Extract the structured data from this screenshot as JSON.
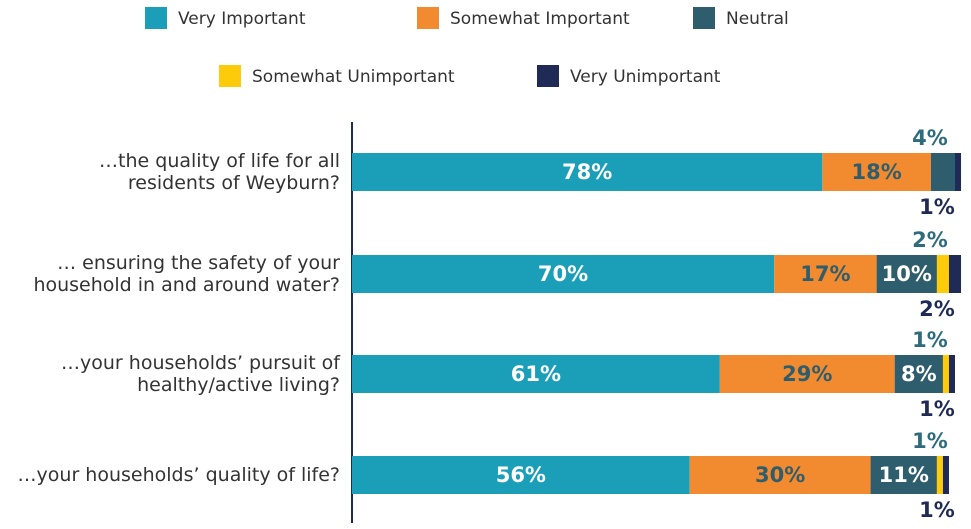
{
  "chart_data": {
    "type": "stacked-bar-horizontal",
    "categories": [
      "…the quality of life for all residents of Weyburn?",
      "… ensuring the safety of your household in and around water?",
      "…your households’ pursuit of healthy/active living?",
      "…your households’ quality of life?"
    ],
    "series": [
      {
        "name": "Very Important",
        "color": "#1b9fb8",
        "values": [
          78,
          70,
          61,
          56
        ],
        "value_labels": [
          "78%",
          "70%",
          "61%",
          "56%"
        ]
      },
      {
        "name": "Somewhat Important",
        "color": "#f28b30",
        "values": [
          18,
          17,
          29,
          30
        ],
        "value_labels": [
          "18%",
          "17%",
          "29%",
          "30%"
        ]
      },
      {
        "name": "Neutral",
        "color": "#2e5d6e",
        "values": [
          4,
          10,
          8,
          11
        ],
        "value_labels": [
          "4%",
          "10%",
          "8%",
          "11%"
        ]
      },
      {
        "name": "Somewhat Unimportant",
        "color": "#fecb0a",
        "values": [
          0,
          2,
          1,
          1
        ],
        "value_labels": [
          null,
          "2%",
          "1%",
          "1%"
        ]
      },
      {
        "name": "Very Unimportant",
        "color": "#1f2a56",
        "values": [
          1,
          2,
          1,
          1
        ],
        "value_labels": [
          "1%",
          "2%",
          "1%",
          "1%"
        ]
      }
    ],
    "legend": "top"
  }
}
